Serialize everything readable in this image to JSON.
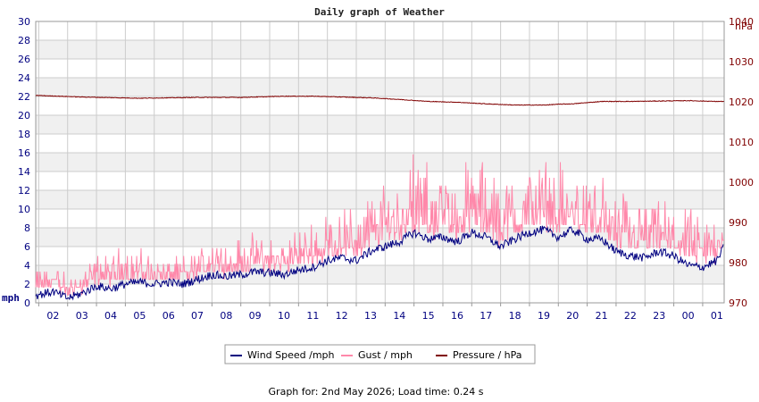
{
  "chart_data": {
    "type": "line",
    "title": "Daily graph of Weather",
    "left_axis": {
      "unit": "mph",
      "ylim": [
        0,
        30
      ],
      "ticks": [
        "0",
        "2",
        "4",
        "6",
        "8",
        "10",
        "12",
        "14",
        "16",
        "18",
        "20",
        "22",
        "24",
        "26",
        "28",
        "30"
      ],
      "color": "#000080"
    },
    "right_axis": {
      "unit": "hPa",
      "ylim": [
        970,
        1040
      ],
      "ticks": [
        "970",
        "980",
        "990",
        "1000",
        "1010",
        "1020",
        "1030",
        "1040"
      ],
      "color": "#800000"
    },
    "x_ticks": [
      "02",
      "03",
      "04",
      "05",
      "06",
      "07",
      "08",
      "09",
      "10",
      "11",
      "12",
      "13",
      "14",
      "15",
      "16",
      "17",
      "18",
      "19",
      "20",
      "21",
      "22",
      "23",
      "00",
      "01"
    ],
    "x_range_hours": [
      1.4,
      25.25
    ],
    "grid": true,
    "legend_placement": "bottom-center",
    "series": [
      {
        "name": "Wind Speed /mph",
        "axis": "left",
        "color": "#000080",
        "x": [
          1.4,
          2,
          2.5,
          3,
          3.5,
          4,
          4.5,
          5,
          5.5,
          6,
          6.5,
          7,
          7.5,
          8,
          8.5,
          9,
          9.5,
          10,
          10.5,
          11,
          11.5,
          12,
          12.5,
          13,
          13.5,
          14,
          14.5,
          15,
          15.5,
          16,
          16.5,
          17,
          17.5,
          18,
          18.5,
          19,
          19.5,
          20,
          20.5,
          21,
          21.5,
          22,
          22.5,
          23,
          23.5,
          24,
          24.5,
          25,
          25.25
        ],
        "values": [
          0.8,
          1.2,
          0.5,
          1.0,
          1.8,
          1.5,
          2.0,
          2.2,
          2.0,
          2.2,
          2.0,
          2.5,
          3.0,
          2.8,
          3.0,
          3.3,
          3.2,
          3.0,
          3.5,
          3.8,
          4.5,
          4.8,
          4.5,
          5.5,
          6.0,
          6.5,
          7.5,
          6.8,
          7.0,
          6.5,
          7.5,
          7.0,
          6.0,
          6.8,
          7.5,
          7.8,
          7.0,
          7.8,
          6.8,
          6.8,
          5.5,
          5.0,
          4.8,
          5.5,
          5.0,
          4.0,
          3.8,
          4.5,
          6.0
        ]
      },
      {
        "name": "Gust / mph",
        "axis": "left",
        "color": "#ff88aa",
        "x": [
          1.4,
          2,
          2.5,
          3,
          3.5,
          4,
          4.5,
          5,
          5.5,
          6,
          6.5,
          7,
          7.5,
          8,
          8.5,
          9,
          9.5,
          10,
          10.5,
          11,
          11.5,
          12,
          12.5,
          13,
          13.5,
          14,
          14.5,
          15,
          15.5,
          16,
          16.5,
          17,
          17.5,
          18,
          18.5,
          19,
          19.5,
          20,
          20.5,
          21,
          21.5,
          22,
          22.5,
          23,
          23.5,
          24,
          24.5,
          25,
          25.25
        ],
        "values": [
          2.5,
          3.0,
          1.5,
          2.5,
          3.5,
          3.5,
          4.0,
          4.0,
          3.5,
          3.5,
          3.5,
          4.0,
          5.0,
          5.0,
          5.0,
          5.5,
          5.5,
          5.0,
          6.0,
          6.5,
          7.5,
          8.0,
          8.0,
          9.0,
          10.0,
          11.0,
          12.5,
          11.0,
          11.5,
          11.0,
          12.0,
          11.5,
          10.0,
          11.0,
          12.0,
          12.0,
          11.0,
          11.5,
          10.5,
          10.5,
          9.0,
          8.5,
          8.0,
          8.5,
          8.0,
          7.0,
          6.5,
          7.5,
          9.0
        ]
      },
      {
        "name": "Pressure / hPa",
        "axis": "right",
        "color": "#800000",
        "x": [
          1.4,
          3,
          5,
          7,
          8.5,
          10,
          11,
          13,
          14,
          15,
          16,
          17,
          18,
          19,
          19.5,
          20,
          21,
          22,
          23,
          24,
          25,
          25.25
        ],
        "values": [
          1021.6,
          1021.2,
          1020.9,
          1021.1,
          1021.1,
          1021.4,
          1021.4,
          1021.0,
          1020.6,
          1020.1,
          1019.9,
          1019.5,
          1019.2,
          1019.2,
          1019.4,
          1019.5,
          1020.1,
          1020.1,
          1020.2,
          1020.3,
          1020.1,
          1020.1
        ]
      }
    ]
  },
  "footer": {
    "text": "Graph for: 2nd May 2026; Load time: 0.24 s"
  }
}
